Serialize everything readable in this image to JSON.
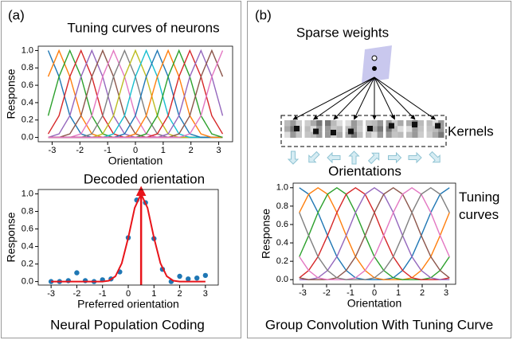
{
  "panels": [
    {
      "label": "(a)",
      "caption": "Neural Population Coding"
    },
    {
      "label": "(b)",
      "caption": "Group Convolution With Tuning Curve",
      "sparse_label": "Sparse weights",
      "kernels_label": "Kernels",
      "orientations_label": "Orientations",
      "tuning_label": "Tuning curves"
    }
  ],
  "chart_data": [
    {
      "type": "line",
      "title": "Tuning curves of neurons",
      "xlabel": "Orientation",
      "ylabel": "Response",
      "xlim": [
        -3.5,
        3.5
      ],
      "ylim": [
        -0.05,
        1.05
      ],
      "xticks": [
        -3,
        -2,
        -1,
        0,
        1,
        2,
        3
      ],
      "yticks": [
        {
          "value": 0,
          "label": "0.0"
        },
        0.2,
        0.4,
        0.6,
        0.8,
        {
          "value": 1,
          "label": "1.0"
        }
      ],
      "x": [
        -3.14,
        -2.75,
        -2.36,
        -1.96,
        -1.57,
        -1.18,
        -0.79,
        -0.39,
        0,
        0.39,
        0.79,
        1.18,
        1.57,
        1.96,
        2.36,
        2.75,
        3.14
      ],
      "series": [
        {
          "color": "#1f77b4",
          "values": [
            1,
            0.7,
            0.25,
            0.04,
            0,
            0,
            0,
            0,
            0,
            0,
            0,
            0,
            0,
            0,
            0,
            0,
            0
          ]
        },
        {
          "color": "#ff7f0e",
          "values": [
            0.7,
            1,
            0.7,
            0.25,
            0.04,
            0,
            0,
            0,
            0,
            0,
            0,
            0,
            0,
            0,
            0,
            0,
            0
          ]
        },
        {
          "color": "#2ca02c",
          "values": [
            0.25,
            0.7,
            1,
            0.7,
            0.25,
            0.04,
            0,
            0,
            0,
            0,
            0,
            0,
            0,
            0,
            0,
            0,
            0
          ]
        },
        {
          "color": "#d62728",
          "values": [
            0.04,
            0.25,
            0.7,
            1,
            0.7,
            0.25,
            0.04,
            0,
            0,
            0,
            0,
            0,
            0,
            0,
            0,
            0,
            0
          ]
        },
        {
          "color": "#9467bd",
          "values": [
            0,
            0.04,
            0.25,
            0.7,
            1,
            0.7,
            0.25,
            0.04,
            0,
            0,
            0,
            0,
            0,
            0,
            0,
            0,
            0
          ]
        },
        {
          "color": "#8c564b",
          "values": [
            0,
            0,
            0.04,
            0.25,
            0.7,
            1,
            0.7,
            0.25,
            0.04,
            0,
            0,
            0,
            0,
            0,
            0,
            0,
            0
          ]
        },
        {
          "color": "#e377c2",
          "values": [
            0,
            0,
            0,
            0.04,
            0.25,
            0.7,
            1,
            0.7,
            0.25,
            0.04,
            0,
            0,
            0,
            0,
            0,
            0,
            0
          ]
        },
        {
          "color": "#7f7f7f",
          "values": [
            0,
            0,
            0,
            0,
            0.04,
            0.25,
            0.7,
            1,
            0.7,
            0.25,
            0.04,
            0,
            0,
            0,
            0,
            0,
            0
          ]
        },
        {
          "color": "#bcbd22",
          "values": [
            0,
            0,
            0,
            0,
            0,
            0.04,
            0.25,
            0.7,
            1,
            0.7,
            0.25,
            0.04,
            0,
            0,
            0,
            0,
            0
          ]
        },
        {
          "color": "#17becf",
          "values": [
            0,
            0,
            0,
            0,
            0,
            0,
            0.04,
            0.25,
            0.7,
            1,
            0.7,
            0.25,
            0.04,
            0,
            0,
            0,
            0
          ]
        },
        {
          "color": "#1f77b4",
          "values": [
            0,
            0,
            0,
            0,
            0,
            0,
            0,
            0.04,
            0.25,
            0.7,
            1,
            0.7,
            0.25,
            0.04,
            0,
            0,
            0
          ]
        },
        {
          "color": "#ff7f0e",
          "values": [
            0,
            0,
            0,
            0,
            0,
            0,
            0,
            0,
            0.04,
            0.25,
            0.7,
            1,
            0.7,
            0.25,
            0.04,
            0,
            0
          ]
        },
        {
          "color": "#2ca02c",
          "values": [
            0,
            0,
            0,
            0,
            0,
            0,
            0,
            0,
            0,
            0.04,
            0.25,
            0.7,
            1,
            0.7,
            0.25,
            0.04,
            0
          ]
        },
        {
          "color": "#d62728",
          "values": [
            0,
            0,
            0,
            0,
            0,
            0,
            0,
            0,
            0,
            0,
            0.04,
            0.25,
            0.7,
            1,
            0.7,
            0.25,
            0.04
          ]
        },
        {
          "color": "#9467bd",
          "values": [
            0,
            0,
            0,
            0,
            0,
            0,
            0,
            0,
            0,
            0,
            0,
            0.04,
            0.25,
            0.7,
            1,
            0.7,
            0.25
          ]
        },
        {
          "color": "#8c564b",
          "values": [
            0,
            0,
            0,
            0,
            0,
            0,
            0,
            0,
            0,
            0,
            0,
            0,
            0.04,
            0.25,
            0.7,
            1,
            0.7
          ]
        },
        {
          "color": "#e377c2",
          "values": [
            0,
            0,
            0,
            0,
            0,
            0,
            0,
            0,
            0,
            0,
            0,
            0,
            0,
            0.04,
            0.25,
            0.7,
            1
          ]
        }
      ]
    },
    {
      "type": "scatter",
      "title": "Decoded orientation",
      "xlabel": "Preferred orientation",
      "ylabel": "Response",
      "xlim": [
        -3.5,
        3.5
      ],
      "ylim": [
        -0.04,
        1.05
      ],
      "xticks": [
        -3,
        -2,
        -1,
        0,
        1,
        2,
        3
      ],
      "yticks": [
        {
          "value": 0,
          "label": "0.0"
        },
        0.2,
        0.4,
        0.6,
        0.8,
        {
          "value": 1,
          "label": "1.0"
        }
      ],
      "decoded_orientation": 0.5,
      "series": [
        {
          "type": "scatter",
          "color": "#1f77b4",
          "x": [
            -3.0,
            -2.67,
            -2.33,
            -2.0,
            -1.67,
            -1.33,
            -1.0,
            -0.67,
            -0.33,
            0.0,
            0.33,
            0.67,
            1.0,
            1.33,
            1.67,
            2.0,
            2.33,
            2.67,
            3.0
          ],
          "values": [
            0.0,
            0.0,
            0.01,
            0.1,
            0.01,
            0.0,
            0.02,
            0.03,
            0.11,
            0.5,
            0.93,
            0.9,
            0.49,
            0.14,
            0.0,
            0.06,
            0.03,
            0.04,
            0.07
          ]
        },
        {
          "type": "line",
          "color": "#e8141a",
          "x": [
            -3.0,
            -2.75,
            -2.5,
            -2.25,
            -2.0,
            -1.75,
            -1.5,
            -1.25,
            -1.0,
            -0.75,
            -0.5,
            -0.25,
            0,
            0.25,
            0.5,
            0.75,
            1.0,
            1.25,
            1.5,
            1.75,
            2.0,
            2.25,
            2.5,
            2.75,
            3.0
          ],
          "values": [
            0,
            0,
            0,
            0,
            0,
            0,
            0,
            0,
            0,
            0.01,
            0.06,
            0.21,
            0.5,
            0.84,
            1,
            0.84,
            0.5,
            0.21,
            0.06,
            0.01,
            0,
            0,
            0,
            0,
            0
          ]
        }
      ]
    },
    {
      "type": "line",
      "xlabel": "Orientation",
      "ylabel": "Response",
      "xlim": [
        -3.4,
        3.4
      ],
      "ylim": [
        -0.05,
        1.05
      ],
      "xticks": [
        -3,
        -2,
        -1,
        0,
        1,
        2,
        3
      ],
      "yticks": [
        {
          "value": 0,
          "label": "0.0"
        },
        0.2,
        0.4,
        0.6,
        0.8,
        {
          "value": 1,
          "label": "1.0"
        }
      ],
      "x": [
        -3.14,
        -2.75,
        -2.36,
        -1.96,
        -1.57,
        -1.18,
        -0.79,
        -0.39,
        0,
        0.39,
        0.79,
        1.18,
        1.57,
        1.96,
        2.36,
        2.75,
        3.14
      ],
      "series": [
        {
          "color": "#1f77b4",
          "values": [
            1,
            0.93,
            0.73,
            0.48,
            0.25,
            0.1,
            0.02,
            0,
            0,
            0,
            0.02,
            0.1,
            0.25,
            0.48,
            0.73,
            0.93,
            1
          ]
        },
        {
          "color": "#ff7f0e",
          "values": [
            0.73,
            0.93,
            1,
            0.93,
            0.73,
            0.48,
            0.25,
            0.1,
            0.02,
            0,
            0,
            0,
            0.02,
            0.1,
            0.25,
            0.48,
            0.73
          ]
        },
        {
          "color": "#2ca02c",
          "values": [
            0.25,
            0.48,
            0.73,
            0.93,
            1,
            0.93,
            0.73,
            0.48,
            0.25,
            0.1,
            0.02,
            0,
            0,
            0,
            0.02,
            0.1,
            0.25
          ]
        },
        {
          "color": "#d62728",
          "values": [
            0.02,
            0.1,
            0.25,
            0.48,
            0.73,
            0.93,
            1,
            0.93,
            0.73,
            0.48,
            0.25,
            0.1,
            0.02,
            0,
            0,
            0,
            0.02
          ]
        },
        {
          "color": "#9467bd",
          "values": [
            0,
            0,
            0.02,
            0.1,
            0.25,
            0.48,
            0.73,
            0.93,
            1,
            0.93,
            0.73,
            0.48,
            0.25,
            0.1,
            0.02,
            0,
            0
          ]
        },
        {
          "color": "#8c564b",
          "values": [
            0.02,
            0,
            0,
            0,
            0.02,
            0.1,
            0.25,
            0.48,
            0.73,
            0.93,
            1,
            0.93,
            0.73,
            0.48,
            0.25,
            0.1,
            0.02
          ]
        },
        {
          "color": "#e377c2",
          "values": [
            0.25,
            0.1,
            0.02,
            0,
            0,
            0,
            0.02,
            0.1,
            0.25,
            0.48,
            0.73,
            0.93,
            1,
            0.93,
            0.73,
            0.48,
            0.25
          ]
        },
        {
          "color": "#7f7f7f",
          "values": [
            0.73,
            0.48,
            0.25,
            0.1,
            0.02,
            0,
            0,
            0,
            0.02,
            0.1,
            0.25,
            0.48,
            0.73,
            0.93,
            1,
            0.93,
            0.73
          ]
        }
      ]
    }
  ]
}
